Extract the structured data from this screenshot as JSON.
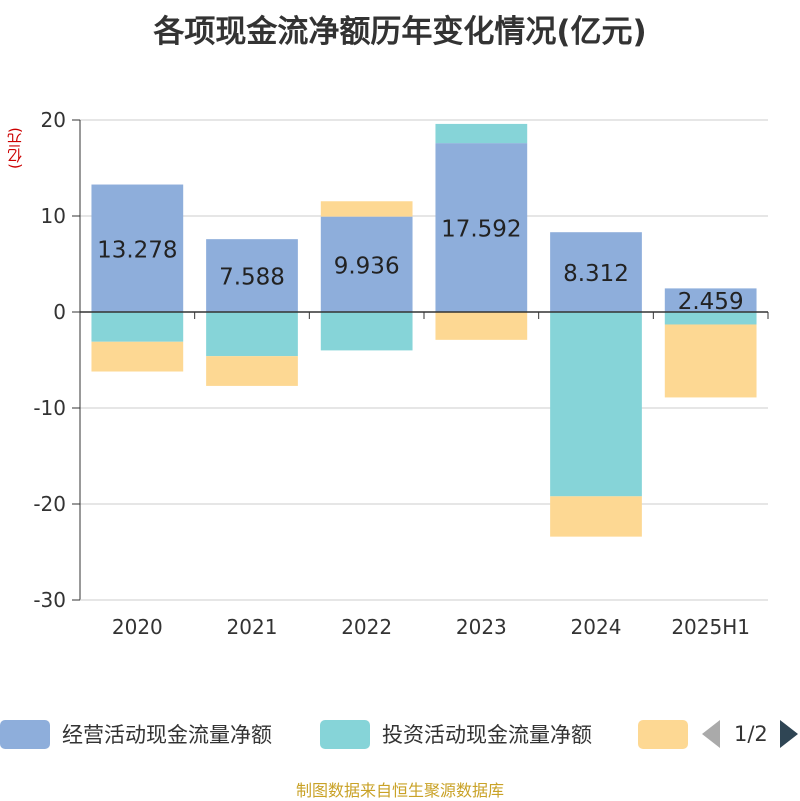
{
  "chart_data": {
    "type": "bar",
    "stacked": true,
    "title": "各项现金流净额历年变化情况(亿元)",
    "unit": "(亿元)",
    "categories": [
      "2020",
      "2021",
      "2022",
      "2023",
      "2024",
      "2025H1"
    ],
    "ylim": [
      -30,
      20
    ],
    "yticks": [
      20,
      10,
      0,
      -10,
      -20,
      -30
    ],
    "grid": true,
    "legend_position": "bottom",
    "series": [
      {
        "name": "经营活动现金流量净额",
        "color": "#8eaedb",
        "values": [
          13.278,
          7.588,
          9.936,
          17.592,
          8.312,
          2.459
        ]
      },
      {
        "name": "投资活动现金流量净额",
        "color": "#86d4d8",
        "values": [
          -3.1,
          -4.6,
          -4.0,
          2.0,
          -19.2,
          -1.3
        ]
      },
      {
        "color": "#fdd893",
        "values": [
          -3.1,
          -3.1,
          1.6,
          -2.9,
          -4.2,
          -7.6
        ]
      }
    ],
    "data_labels": [
      "13.278",
      "7.588",
      "9.936",
      "17.592",
      "8.312",
      "2.459"
    ]
  },
  "legend": {
    "page": "1/2"
  },
  "source": "制图数据来自恒生聚源数据库"
}
